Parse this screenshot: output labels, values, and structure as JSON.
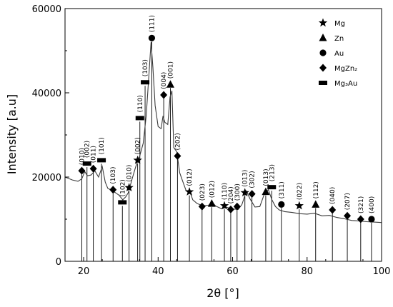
{
  "chart_data": {
    "type": "line",
    "xlabel": "2θ [°]",
    "ylabel": "Intensity [a.u]",
    "xlim": [
      15,
      100
    ],
    "ylim": [
      0,
      60000
    ],
    "xticks": [
      20,
      40,
      60,
      80,
      100
    ],
    "yticks": [
      0,
      20000,
      40000,
      60000
    ],
    "grid": false,
    "legend_position": "top-right",
    "series_color": "#3a3a3a",
    "pattern": [
      [
        15,
        20000
      ],
      [
        17,
        19300
      ],
      [
        18.5,
        19000
      ],
      [
        19.5,
        19600
      ],
      [
        20.3,
        21300
      ],
      [
        21,
        20300
      ],
      [
        22,
        20500
      ],
      [
        23,
        21500
      ],
      [
        24,
        20000
      ],
      [
        25,
        22500
      ],
      [
        25.8,
        18800
      ],
      [
        26.5,
        17300
      ],
      [
        27.5,
        16900
      ],
      [
        28.5,
        16300
      ],
      [
        29.5,
        15700
      ],
      [
        30.5,
        14600
      ],
      [
        31.3,
        15300
      ],
      [
        32,
        16300
      ],
      [
        33,
        19500
      ],
      [
        34,
        22500
      ],
      [
        35,
        24800
      ],
      [
        36,
        28000
      ],
      [
        36.8,
        34500
      ],
      [
        37.5,
        44000
      ],
      [
        38.1,
        52000
      ],
      [
        38.6,
        46000
      ],
      [
        39.2,
        37000
      ],
      [
        40,
        32000
      ],
      [
        40.8,
        31500
      ],
      [
        41.3,
        34500
      ],
      [
        41.8,
        33000
      ],
      [
        42.6,
        32500
      ],
      [
        43.2,
        39000
      ],
      [
        43.7,
        40500
      ],
      [
        44.2,
        27000
      ],
      [
        45,
        26000
      ],
      [
        45.8,
        21000
      ],
      [
        46.6,
        19000
      ],
      [
        47.5,
        16800
      ],
      [
        48.5,
        16600
      ],
      [
        49.3,
        14600
      ],
      [
        50.5,
        13700
      ],
      [
        52,
        13200
      ],
      [
        53.5,
        13300
      ],
      [
        54.5,
        14000
      ],
      [
        55.5,
        13100
      ],
      [
        57,
        12500
      ],
      [
        58.5,
        12800
      ],
      [
        59.5,
        12500
      ],
      [
        60.5,
        12400
      ],
      [
        61.5,
        12300
      ],
      [
        62.5,
        13500
      ],
      [
        63.7,
        16700
      ],
      [
        64.7,
        14800
      ],
      [
        66,
        12900
      ],
      [
        67.3,
        13000
      ],
      [
        68.6,
        16200
      ],
      [
        69.6,
        17000
      ],
      [
        70.5,
        14700
      ],
      [
        71.5,
        13000
      ],
      [
        72.5,
        12200
      ],
      [
        74,
        11800
      ],
      [
        76,
        11600
      ],
      [
        78,
        11300
      ],
      [
        80,
        11200
      ],
      [
        82,
        11400
      ],
      [
        84,
        10800
      ],
      [
        86,
        10900
      ],
      [
        88,
        10400
      ],
      [
        90,
        10100
      ],
      [
        92,
        9700
      ],
      [
        94,
        9600
      ],
      [
        96,
        9400
      ],
      [
        98,
        9300
      ],
      [
        100,
        9200
      ]
    ],
    "peaks": [
      {
        "x": 19.5,
        "y": 21500,
        "phase": "MgZn2",
        "label": "(010)"
      },
      {
        "x": 20.9,
        "y": 23200,
        "phase": "Mg3Au",
        "label": "(002)"
      },
      {
        "x": 22.6,
        "y": 22000,
        "phase": "MgZn2",
        "label": "(011)"
      },
      {
        "x": 24.8,
        "y": 24000,
        "phase": "Mg3Au",
        "label": "(101)"
      },
      {
        "x": 27.9,
        "y": 17000,
        "phase": "MgZn2",
        "label": "(103)"
      },
      {
        "x": 30.4,
        "y": 14000,
        "phase": "Mg3Au",
        "label": "(102)"
      },
      {
        "x": 32.2,
        "y": 17500,
        "phase": "Mg",
        "label": "(010)"
      },
      {
        "x": 34.5,
        "y": 24000,
        "phase": "Mg",
        "label": "(002)"
      },
      {
        "x": 35.1,
        "y": 34000,
        "phase": "Mg3Au",
        "label": "(110)"
      },
      {
        "x": 36.5,
        "y": 42500,
        "phase": "Mg3Au",
        "label": "(103)"
      },
      {
        "x": 38.3,
        "y": 53000,
        "phase": "Au",
        "label": "(111)"
      },
      {
        "x": 41.5,
        "y": 39500,
        "phase": "MgZn2",
        "label": "(004)"
      },
      {
        "x": 43.3,
        "y": 42000,
        "phase": "Zn",
        "label": "(001)"
      },
      {
        "x": 45.2,
        "y": 25000,
        "phase": "MgZn2",
        "label": "(202)"
      },
      {
        "x": 48.4,
        "y": 16500,
        "phase": "Mg",
        "label": "(012)"
      },
      {
        "x": 51.8,
        "y": 13000,
        "phase": "MgZn2",
        "label": "(023)"
      },
      {
        "x": 54.4,
        "y": 13700,
        "phase": "Zn",
        "label": "(012)"
      },
      {
        "x": 57.8,
        "y": 13200,
        "phase": "Mg",
        "label": "(110)"
      },
      {
        "x": 59.5,
        "y": 12300,
        "phase": "MgZn2",
        "label": "(204)"
      },
      {
        "x": 61.2,
        "y": 13000,
        "phase": "MgZn2",
        "label": "(300)"
      },
      {
        "x": 63.3,
        "y": 16300,
        "phase": "Mg",
        "label": "(013)"
      },
      {
        "x": 65.2,
        "y": 16000,
        "phase": "MgZn2",
        "label": "(302)"
      },
      {
        "x": 68.9,
        "y": 16500,
        "phase": "Zn",
        "label": "(013)"
      },
      {
        "x": 70.5,
        "y": 17600,
        "phase": "Mg3Au",
        "label": "(213)"
      },
      {
        "x": 73.1,
        "y": 13500,
        "phase": "Au",
        "label": "(311)"
      },
      {
        "x": 77.9,
        "y": 13200,
        "phase": "Mg",
        "label": "(022)"
      },
      {
        "x": 82.3,
        "y": 13500,
        "phase": "Zn",
        "label": "(112)"
      },
      {
        "x": 86.8,
        "y": 12200,
        "phase": "MgZn2",
        "label": "(040)"
      },
      {
        "x": 90.8,
        "y": 10800,
        "phase": "MgZn2",
        "label": "(207)"
      },
      {
        "x": 94.4,
        "y": 10000,
        "phase": "MgZn2",
        "label": "(321)"
      },
      {
        "x": 97.3,
        "y": 10000,
        "phase": "Au",
        "label": "(400)"
      }
    ],
    "legend": [
      {
        "phase": "Mg",
        "marker": "star",
        "label": "Mg"
      },
      {
        "phase": "Zn",
        "marker": "triangle",
        "label": "Zn"
      },
      {
        "phase": "Au",
        "marker": "circle",
        "label": "Au"
      },
      {
        "phase": "MgZn2",
        "marker": "diamond",
        "label": "MgZn₂"
      },
      {
        "phase": "Mg3Au",
        "marker": "rect",
        "label": "Mg₃Au"
      }
    ]
  }
}
